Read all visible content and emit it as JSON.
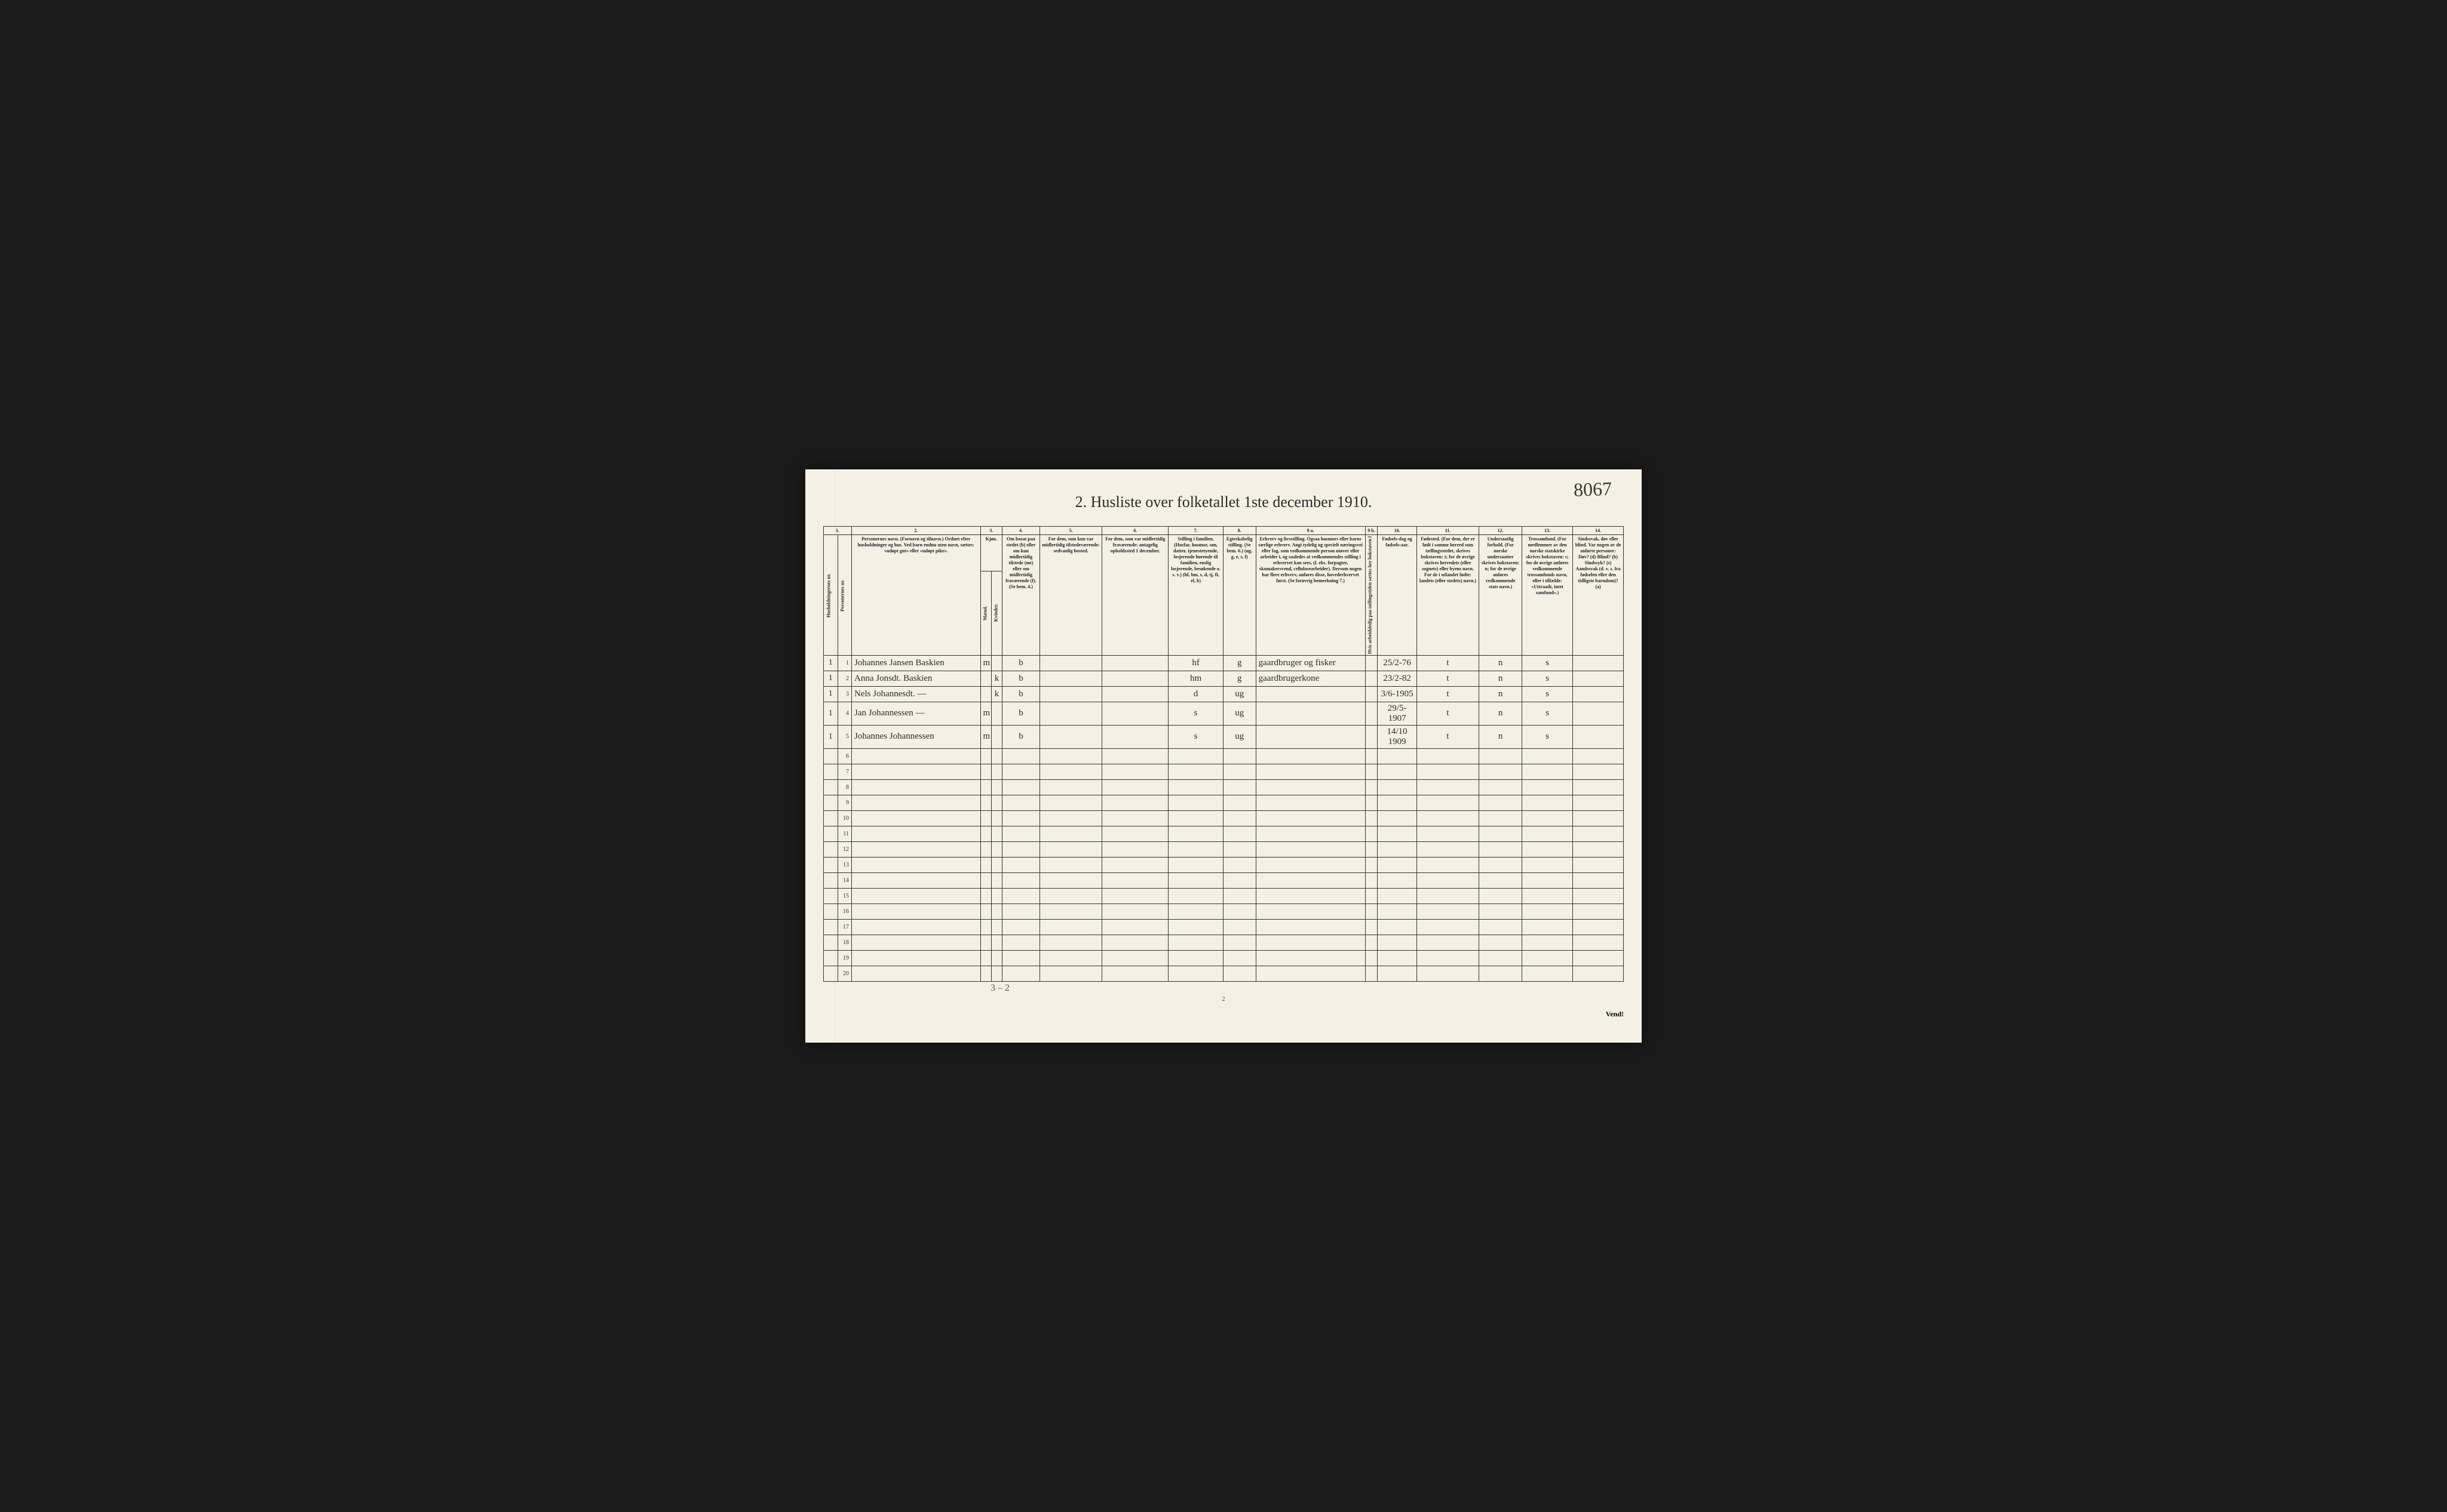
{
  "annotation_top_right": "8067",
  "title": "2.  Husliste over folketallet 1ste december 1910.",
  "columns": {
    "numbers": [
      "1.",
      "2.",
      "3.",
      "4.",
      "5.",
      "6.",
      "7.",
      "8.",
      "9 a.",
      "9 b.",
      "10.",
      "11.",
      "12.",
      "13.",
      "14."
    ],
    "h1_label": "Husholdningernes nr.",
    "h1b_label": "Personernes nr.",
    "h2": "Personernes navn.\n(Fornavn og tilnavn.)\nOrdnet efter husholdninger og hus.\nVed barn endnu uten navn, sættes: «udøpt gut» eller «udøpt pike».",
    "h3_top": "Kjøn.",
    "h3_m": "Mænd.",
    "h3_k": "Kvinder.",
    "h3_mk": "m.  k.",
    "h4": "Om bosat paa stedet (b) eller om kun midlertidig tilstede (mt) eller om midlertidig fraværende (f).\n(Se bem. 4.)",
    "h5": "For dem, som kun var midlertidig tilstedeværende:\nsedvanlig bosted.",
    "h6": "For dem, som var midlertidig fraværende:\nantagelig opholdssted 1 december.",
    "h7": "Stilling i familien.\n(Husfar, husmor, søn, datter, tjenestetyende, losjerende hørende til familien, enslig losjerende, besøkende o. s. v.)\n(hf, hm, s, d, tj, fl, el, b)",
    "h8": "Egteskabelig stilling.\n(Se bem. 6.)\n(ug, g, e, s, f)",
    "h9a": "Erhverv og livsstilling.\nOgsaa husmors eller barns særlige erhverv.\nAngi tydelig og specielt næringsvei eller fag, som vedkommende person utøver eller arbeider i, og saaledes at vedkommendes stilling i erhvervet kan sees, (f. eks. forpagter, skomakersvend, cellulosearbeider). Dersom nogen har flere erhverv, anføres disse, hovederhvervet først.\n(Se forøvrig bemerkning 7.)",
    "h9b": "Hvis arbeidsledig paa tællingstiden sættes her bokstaven l",
    "h10": "Fødsels-dag og fødsels-aar.",
    "h11": "Fødested.\n(For dem, der er født i samme herred som tællingsstedet, skrives bokstaven: t; for de øvrige skrives herredets (eller sognets) eller byens navn.\nFor de i utlandet fødte: landets (eller stedets) navn.)",
    "h12": "Undersaatlig forhold.\n(For norske undersaatter skrives bokstaven: n; for de øvrige anføres vedkommende stats navn.)",
    "h13": "Trossamfund.\n(For medlemmer av den norske statskirke skrives bokstaven: s; for de øvrige anføres vedkommende trossamfunds navn, eller i tilfælde: «Uttraadt, intet samfund».)",
    "h14": "Sindssvak, døv eller blind.\nVar nogen av de anførte personer:\nDøv? (d)\nBlind? (b)\nSindssyk? (s)\nAandssvak (d. v. s. fra fødselen eller den tidligste barndom)? (a)"
  },
  "rows": [
    {
      "hh": "1",
      "pn": "1",
      "name": "Johannes Jansen Baskien",
      "sex": "m",
      "res": "b",
      "c5": "",
      "c6": "",
      "fam": "hf",
      "mar": "g",
      "occ": "gaardbruger og fisker",
      "c9b": "",
      "dob": "25/2-76",
      "birthplace": "t",
      "nat": "n",
      "rel": "s",
      "c14": ""
    },
    {
      "hh": "1",
      "pn": "2",
      "name": "Anna Jonsdt. Baskien",
      "sex": "k",
      "res": "b",
      "c5": "",
      "c6": "",
      "fam": "hm",
      "mar": "g",
      "occ": "gaardbrugerkone",
      "c9b": "",
      "dob": "23/2-82",
      "birthplace": "t",
      "nat": "n",
      "rel": "s",
      "c14": ""
    },
    {
      "hh": "1",
      "pn": "3",
      "name": "Nels Johannesdt.  —",
      "sex": "k",
      "res": "b",
      "c5": "",
      "c6": "",
      "fam": "d",
      "mar": "ug",
      "occ": "",
      "c9b": "",
      "dob": "3/6-1905",
      "birthplace": "t",
      "nat": "n",
      "rel": "s",
      "c14": ""
    },
    {
      "hh": "1",
      "pn": "4",
      "name": "Jan Johannessen  —",
      "sex": "m",
      "res": "b",
      "c5": "",
      "c6": "",
      "fam": "s",
      "mar": "ug",
      "occ": "",
      "c9b": "",
      "dob": "29/5-1907",
      "birthplace": "t",
      "nat": "n",
      "rel": "s",
      "c14": ""
    },
    {
      "hh": "1",
      "pn": "5",
      "name": "Johannes Johannessen",
      "sex": "m",
      "res": "b",
      "c5": "",
      "c6": "",
      "fam": "s",
      "mar": "ug",
      "occ": "",
      "c9b": "",
      "dob": "14/10 1909",
      "birthplace": "t",
      "nat": "n",
      "rel": "s",
      "c14": ""
    }
  ],
  "row_labels": [
    "1",
    "2",
    "3",
    "4",
    "5",
    "6",
    "7",
    "8",
    "9",
    "10",
    "11",
    "12",
    "13",
    "14",
    "15",
    "16",
    "17",
    "18",
    "19",
    "20"
  ],
  "bottom_note": "3 – 2",
  "page_number": "2",
  "turn_text": "Vend!",
  "col_widths_pct": [
    1.8,
    1.8,
    16.5,
    1.4,
    1.4,
    4.8,
    8.0,
    8.5,
    7.0,
    4.2,
    14.0,
    1.6,
    5.0,
    8.0,
    5.5,
    6.5,
    6.5
  ],
  "colors": {
    "paper": "#f5f0e4",
    "ink": "#2a2a2a",
    "border": "#333333",
    "background": "#1a1a1a"
  }
}
